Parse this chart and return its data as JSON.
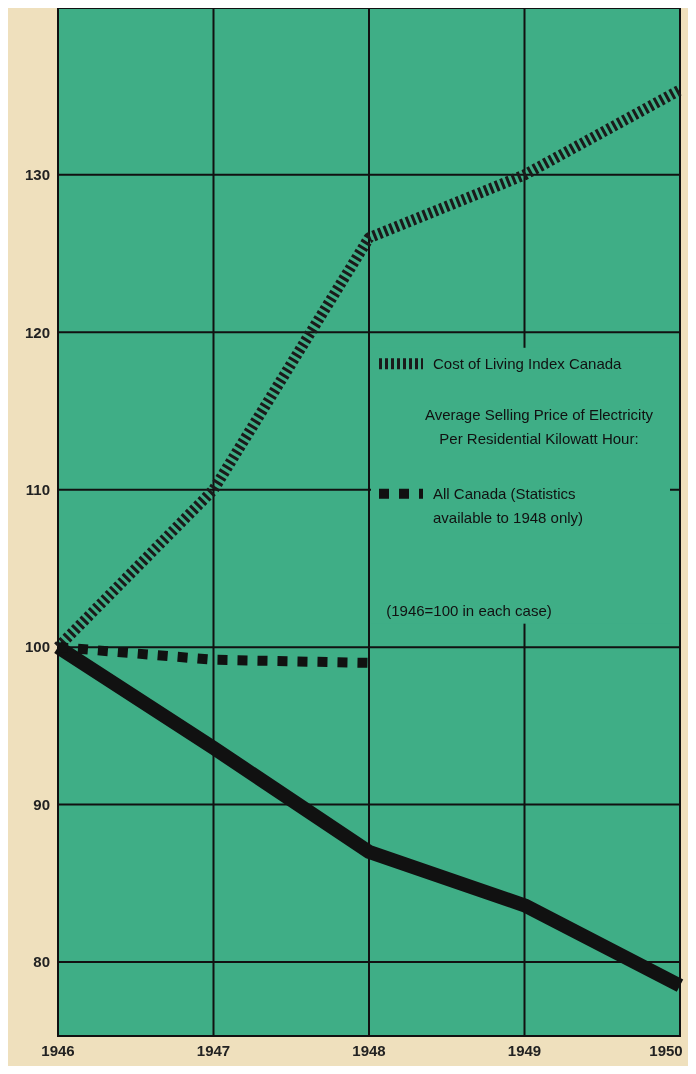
{
  "chart_data": {
    "type": "line",
    "x": [
      1946,
      1947,
      1948,
      1949,
      1950
    ],
    "xlim": [
      1946,
      1950
    ],
    "xticks": [
      1946,
      1947,
      1948,
      1949,
      1950
    ],
    "ylim": [
      75.3,
      140.6
    ],
    "yticks": [
      80,
      90,
      100,
      110,
      120,
      130
    ],
    "grid": true,
    "legend": "right",
    "series": [
      {
        "name": "Cost of Living Index Canada",
        "color": "#1a1a1a",
        "line_style": "dashed",
        "values": [
          100,
          110,
          126,
          130,
          135.4
        ]
      },
      {
        "color": "#111111",
        "line_style": "solid",
        "values": [
          100,
          93.6,
          87,
          83.6,
          78.5
        ]
      },
      {
        "name": "All Canada (Statistics available to 1948 only)",
        "color": "#111111",
        "line_style": "dotted",
        "values": [
          100,
          99.2,
          99,
          null,
          null
        ]
      }
    ],
    "annotations": [
      "Average Selling Price of Electricity Per Residential Kilowatt Hour:",
      "(1946=100 in each case)"
    ]
  }
}
